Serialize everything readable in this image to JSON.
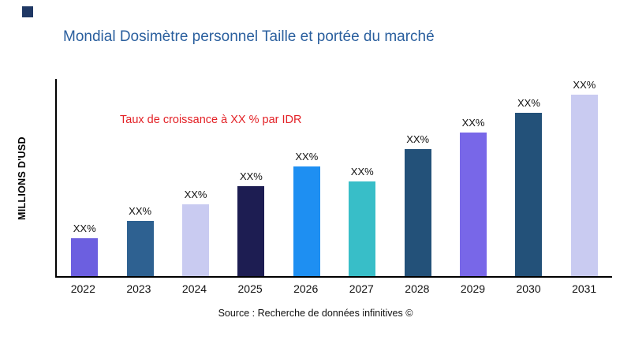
{
  "page": {
    "source": "Source : Recherche de données infinitives ©",
    "accent_square_color": "#1f3864",
    "title_color": "#2a5f9e",
    "annotation_color": "#e32126"
  },
  "chart_data": {
    "type": "bar",
    "title": "Mondial Dosimètre personnel Taille et portée du marché",
    "ylabel": "MILLIONS D'USD",
    "xlabel": "",
    "annotation": "Taux de croissance à XX % par IDR",
    "categories": [
      "2022",
      "2023",
      "2024",
      "2025",
      "2026",
      "2027",
      "2028",
      "2029",
      "2030",
      "2031"
    ],
    "values": [
      21,
      31,
      40,
      50,
      61,
      53,
      71,
      80,
      91,
      101
    ],
    "value_labels": [
      "XX%",
      "XX%",
      "XX%",
      "XX%",
      "XX%",
      "XX%",
      "XX%",
      "XX%",
      "XX%",
      "XX%"
    ],
    "bar_colors": [
      "#6c5fe0",
      "#2e6191",
      "#c9cbf1",
      "#1d1d52",
      "#1e8ff2",
      "#38bec8",
      "#235179",
      "#7867e8",
      "#235179",
      "#c9cbf1"
    ],
    "ylim": [
      0,
      110
    ],
    "grid": false,
    "legend": null
  }
}
